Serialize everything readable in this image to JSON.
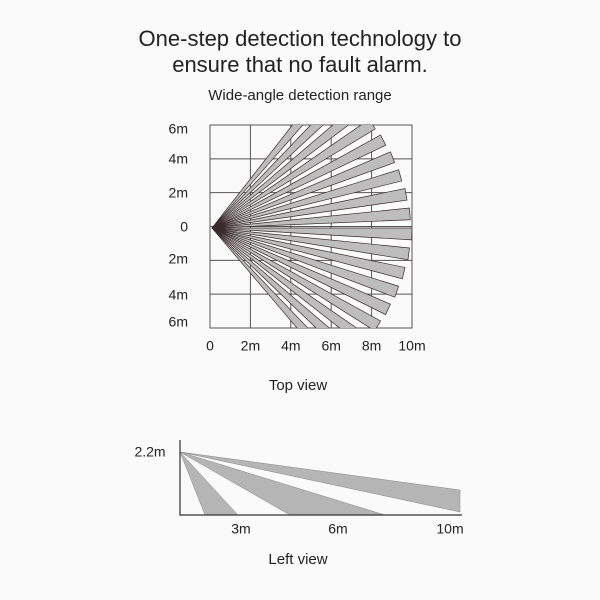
{
  "title": {
    "lines": [
      "One-step detection technology to",
      "ensure that no fault alarm."
    ]
  },
  "subtitle": "Wide-angle detection range",
  "top_view": {
    "y_labels": [
      "6m",
      "4m",
      "2m",
      "0",
      "2m",
      "4m",
      "6m"
    ],
    "x_labels": [
      "0",
      "2m",
      "4m",
      "6m",
      "8m",
      "10m"
    ],
    "caption": "Top view"
  },
  "left_view": {
    "height_label": "2.2m",
    "x_labels": [
      "3m",
      "6m",
      "10m"
    ],
    "caption": "Left view"
  }
}
